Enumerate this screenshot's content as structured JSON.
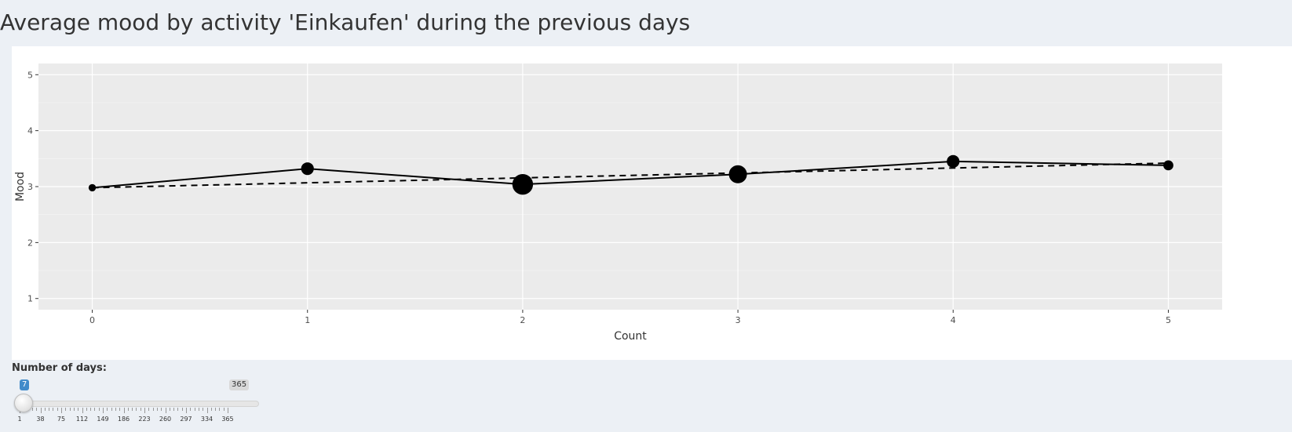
{
  "title": "Average mood by activity 'Einkaufen' during the previous days",
  "chart_data": {
    "type": "line",
    "title": "",
    "xlabel": "Count",
    "ylabel": "Mood",
    "xlim": [
      -0.25,
      5.25
    ],
    "ylim": [
      0.8,
      5.2
    ],
    "x_ticks": [
      0,
      1,
      2,
      3,
      4,
      5
    ],
    "y_ticks": [
      1,
      2,
      3,
      4,
      5
    ],
    "grid": true,
    "legend": "none",
    "colors": {
      "panel": "#ebebeb",
      "grid": "#ffffff",
      "line": "#000000"
    },
    "series": [
      {
        "line_style": "solid",
        "x": [
          0,
          1,
          2,
          3,
          4,
          5
        ],
        "y": [
          2.98,
          3.32,
          3.04,
          3.22,
          3.45,
          3.38
        ],
        "point_size": [
          1,
          3,
          6,
          5,
          3,
          2
        ]
      },
      {
        "line_style": "dashed",
        "x": [
          0,
          5
        ],
        "y": [
          2.98,
          3.42
        ]
      }
    ]
  },
  "slider": {
    "label": "Number of days:",
    "min": 1,
    "max": 365,
    "selected_from": 7,
    "selected_to_label": "365",
    "selected_from_label": "7",
    "tick_labels": [
      "1",
      "38",
      "75",
      "112",
      "149",
      "186",
      "223",
      "260",
      "297",
      "334",
      "365"
    ]
  }
}
